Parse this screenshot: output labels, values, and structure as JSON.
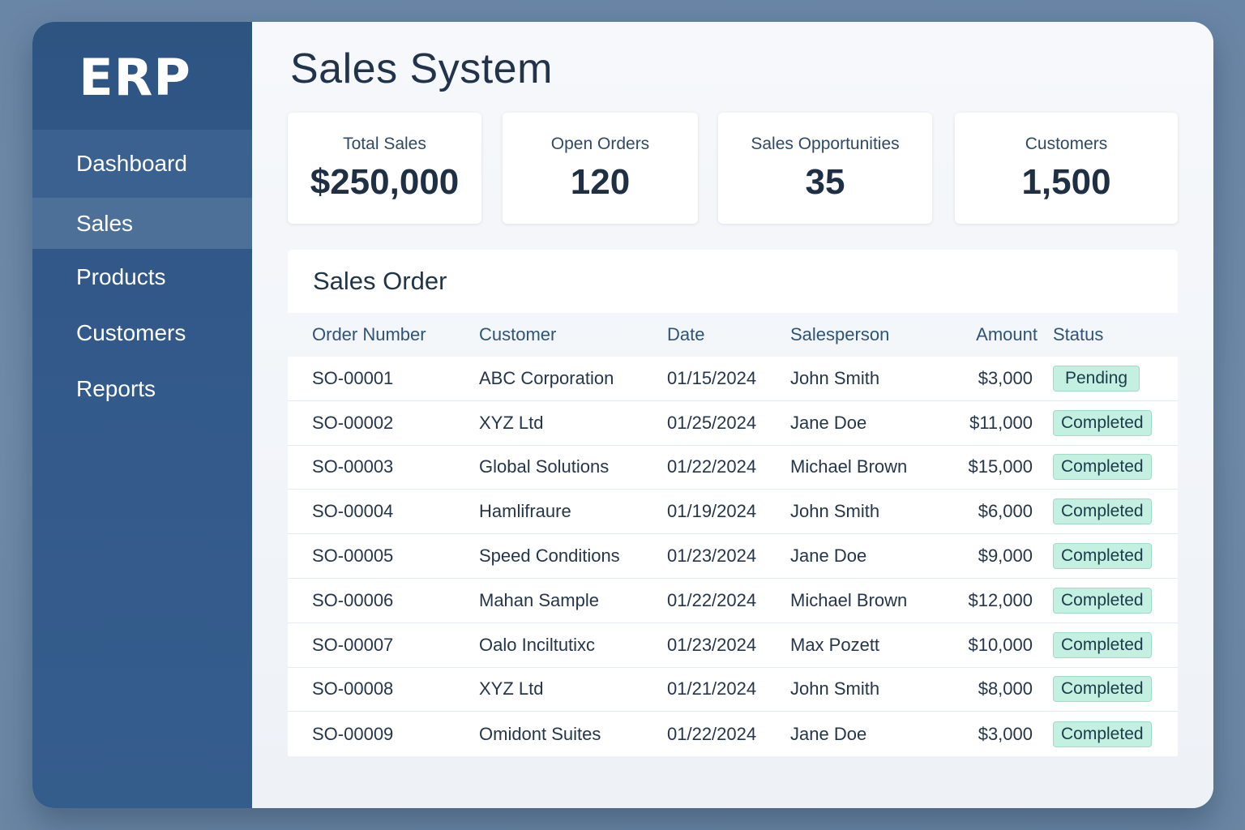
{
  "sidebar": {
    "logo": "ERP",
    "items": [
      {
        "label": "Dashboard"
      },
      {
        "label": "Sales"
      },
      {
        "label": "Products"
      },
      {
        "label": "Customers"
      },
      {
        "label": "Reports"
      }
    ]
  },
  "main": {
    "title": "Sales System",
    "stats": [
      {
        "label": "Total Sales",
        "value": "$250,000"
      },
      {
        "label": "Open Orders",
        "value": "120"
      },
      {
        "label": "Sales Opportunities",
        "value": "35"
      },
      {
        "label": "Customers",
        "value": "1,500"
      }
    ],
    "orders": {
      "title": "Sales Order",
      "columns": [
        "Order Number",
        "Customer",
        "Date",
        "Salesperson",
        "Amount",
        "Status"
      ],
      "rows": [
        {
          "order": "SO-00001",
          "customer": "ABC Corporation",
          "date": "01/15/2024",
          "salesperson": "John Smith",
          "amount": "$3,000",
          "status": "Pending"
        },
        {
          "order": "SO-00002",
          "customer": "XYZ Ltd",
          "date": "01/25/2024",
          "salesperson": "Jane Doe",
          "amount": "$11,000",
          "status": "Completed"
        },
        {
          "order": "SO-00003",
          "customer": "Global Solutions",
          "date": "01/22/2024",
          "salesperson": "Michael Brown",
          "amount": "$15,000",
          "status": "Completed"
        },
        {
          "order": "SO-00004",
          "customer": "Hamlifraure",
          "date": "01/19/2024",
          "salesperson": "John Smith",
          "amount": "$6,000",
          "status": "Completed"
        },
        {
          "order": "SO-00005",
          "customer": "Speed Conditions",
          "date": "01/23/2024",
          "salesperson": "Jane Doe",
          "amount": "$9,000",
          "status": "Completed"
        },
        {
          "order": "SO-00006",
          "customer": "Mahan Sample",
          "date": "01/22/2024",
          "salesperson": "Michael Brown",
          "amount": "$12,000",
          "status": "Completed"
        },
        {
          "order": "SO-00007",
          "customer": "Oalo Inciltutixc",
          "date": "01/23/2024",
          "salesperson": "Max Pozett",
          "amount": "$10,000",
          "status": "Completed"
        },
        {
          "order": "SO-00008",
          "customer": "XYZ Ltd",
          "date": "01/21/2024",
          "salesperson": "John Smith",
          "amount": "$8,000",
          "status": "Completed"
        },
        {
          "order": "SO-00009",
          "customer": "Omidont Suites",
          "date": "01/22/2024",
          "salesperson": "Jane Doe",
          "amount": "$3,000",
          "status": "Completed"
        }
      ]
    }
  },
  "colors": {
    "sidebar": "#2e5482",
    "active_item": "#4d7099",
    "badge_bg": "#c4f0e2",
    "header_text": "#2f5478"
  }
}
